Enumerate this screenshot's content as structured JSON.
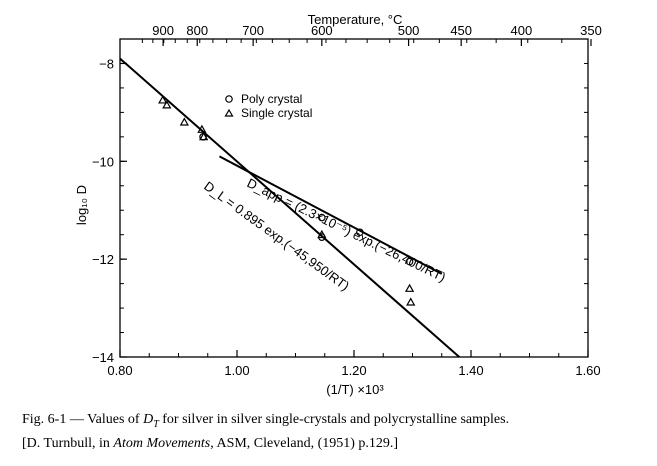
{
  "chart_data": {
    "type": "scatter",
    "title": "",
    "xlabel": "(1/T) ×10³",
    "ylabel": "log₁₀ D",
    "top_axis_label": "Temperature, °C",
    "xlim": [
      0.8,
      1.6
    ],
    "ylim": [
      -14,
      -7.5
    ],
    "x_ticks": [
      0.8,
      1.0,
      1.2,
      1.4,
      1.6
    ],
    "x_tick_labels": [
      "0.80",
      "1.00",
      "1.20",
      "1.40",
      "1.60"
    ],
    "y_ticks": [
      -8,
      -10,
      -12,
      -14
    ],
    "y_tick_labels": [
      "−8",
      "−10",
      "−12",
      "−14"
    ],
    "top_ticks": [
      900,
      800,
      700,
      600,
      500,
      450,
      400,
      350
    ],
    "top_tick_labels": [
      "900",
      "800",
      "700",
      "600",
      "500",
      "450",
      "400",
      "350"
    ],
    "top_tick_positions": [
      0.8737,
      0.932,
      1.0276,
      1.145,
      1.2933,
      1.3832,
      1.4861,
      1.6051
    ],
    "grid": false,
    "legend": {
      "position": "top-left-center",
      "entries": [
        {
          "marker": "circle",
          "label": "Poly crystal"
        },
        {
          "marker": "triangle",
          "label": "Single crystal"
        }
      ]
    },
    "series": [
      {
        "name": "Poly crystal",
        "marker": "circle",
        "points": [
          {
            "x": 0.942,
            "y": -9.5
          },
          {
            "x": 1.145,
            "y": -11.15
          },
          {
            "x": 1.145,
            "y": -11.55
          },
          {
            "x": 1.21,
            "y": -11.45
          },
          {
            "x": 1.295,
            "y": -12.05
          }
        ]
      },
      {
        "name": "Single crystal",
        "marker": "triangle",
        "points": [
          {
            "x": 0.873,
            "y": -8.75
          },
          {
            "x": 0.88,
            "y": -8.85
          },
          {
            "x": 0.91,
            "y": -9.2
          },
          {
            "x": 0.94,
            "y": -9.35
          },
          {
            "x": 0.943,
            "y": -9.5
          },
          {
            "x": 1.145,
            "y": -11.5
          },
          {
            "x": 1.295,
            "y": -12.6
          },
          {
            "x": 1.297,
            "y": -12.88
          }
        ]
      }
    ],
    "lines": [
      {
        "name": "D_L fit",
        "x": [
          0.8,
          1.38
        ],
        "y": [
          -7.9,
          -14.0
        ]
      },
      {
        "name": "D_app fit",
        "x": [
          0.97,
          1.35
        ],
        "y": [
          -9.9,
          -12.3
        ]
      }
    ],
    "annotations": [
      {
        "id": "dapp",
        "text": "D_app = (2.3×10⁻⁵) exp.(−26,400/RT)"
      },
      {
        "id": "dl",
        "text": "D_L = 0.895 exp.(−45,950/RT)"
      }
    ]
  },
  "caption": {
    "line1_prefix": "Fig. 6-1 — Values of ",
    "line1_symbol": "D",
    "line1_sub": "T",
    "line1_suffix": " for silver in silver single-crystals and polycrystalline samples.",
    "line2_prefix": "[D. Turnbull, in ",
    "line2_italic": "Atom Movements",
    "line2_suffix": ", ASM, Cleveland, (1951) p.129.]"
  }
}
